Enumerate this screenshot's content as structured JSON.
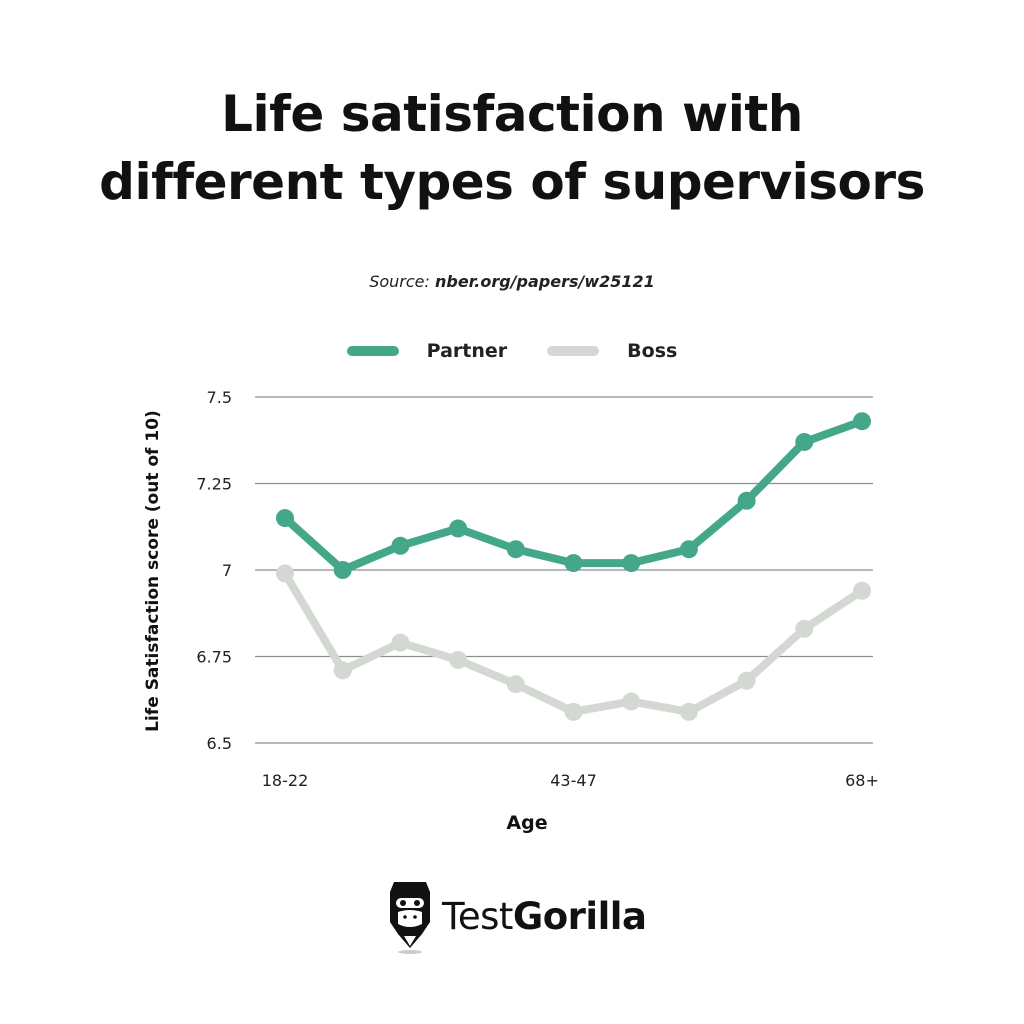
{
  "title_line1": "Life satisfaction with",
  "title_line2": "different types of supervisors",
  "source_prefix": "Source: ",
  "source_link": "nber.org/papers/w25121",
  "brand": {
    "part1": "Test",
    "part2": "Gorilla"
  },
  "colors": {
    "partner": "#45a78a",
    "boss": "#d3d9d2",
    "grid": "#8e8e8e"
  },
  "chart_data": {
    "type": "line",
    "title": "Life satisfaction with different types of supervisors",
    "xlabel": "Age",
    "ylabel": "Life Satisfaction score (out of 10)",
    "ylim": [
      6.5,
      7.5
    ],
    "yticks": [
      "7.5",
      "7.25",
      "7",
      "6.75",
      "6.5"
    ],
    "xticks": [
      "18-22",
      "43-47",
      "68+"
    ],
    "grid": true,
    "legend_position": "top-center",
    "series": [
      {
        "name": "Partner",
        "color": "#45a78a",
        "values": [
          7.15,
          7.0,
          7.07,
          7.12,
          7.06,
          7.02,
          7.02,
          7.06,
          7.2,
          7.37,
          7.43
        ]
      },
      {
        "name": "Boss",
        "color": "#d3d9d2",
        "values": [
          6.99,
          6.71,
          6.79,
          6.74,
          6.67,
          6.59,
          6.62,
          6.59,
          6.68,
          6.83,
          6.94
        ]
      }
    ]
  }
}
